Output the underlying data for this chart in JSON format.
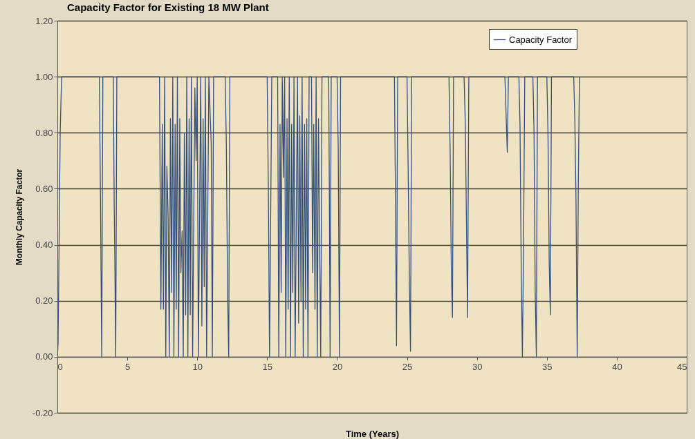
{
  "chart_data": {
    "type": "line",
    "title": "Capacity Factor for Existing 18 MW Plant",
    "xlabel": "Time (Years)",
    "ylabel": "Monthly Capacity Factor",
    "xlim": [
      0,
      45
    ],
    "xticks": [
      0,
      5,
      10,
      15,
      20,
      25,
      30,
      35,
      40,
      45
    ],
    "ylim": [
      -0.2,
      1.2
    ],
    "yticks": [
      {
        "value": -0.2,
        "label": "-0.20"
      },
      {
        "value": 0,
        "label": "0.00"
      },
      {
        "value": 0.2,
        "label": "0.20"
      },
      {
        "value": 0.4,
        "label": "0.40"
      },
      {
        "value": 0.6,
        "label": "0.60"
      },
      {
        "value": 0.8,
        "label": "0.80"
      },
      {
        "value": 1,
        "label": "1.00"
      },
      {
        "value": 1.2,
        "label": "1.20"
      }
    ],
    "grid": "y",
    "legend": "top right",
    "marker": "none",
    "line_style": "solid",
    "series": [
      {
        "name": "Capacity Factor",
        "color": "#34507e",
        "x": [
          0,
          0.05,
          0.1,
          0.2,
          0.3,
          3.0,
          3.08,
          3.17,
          3.25,
          4.0,
          4.06,
          4.1,
          4.17,
          4.25,
          7.3,
          7.4,
          7.5,
          7.58,
          7.67,
          7.75,
          7.83,
          7.92,
          8.0,
          8.08,
          8.17,
          8.25,
          8.33,
          8.42,
          8.5,
          8.58,
          8.67,
          8.75,
          8.83,
          8.92,
          9.0,
          9.08,
          9.17,
          9.25,
          9.33,
          9.42,
          9.5,
          9.58,
          9.67,
          9.83,
          9.92,
          10.0,
          10.08,
          10.25,
          10.33,
          10.42,
          10.5,
          10.58,
          10.67,
          10.83,
          11.0,
          11.08,
          11.17,
          12.0,
          12.08,
          12.17,
          12.25,
          12.33,
          15.0,
          15.08,
          15.17,
          15.33,
          15.75,
          15.83,
          15.92,
          16.0,
          16.08,
          16.17,
          16.25,
          16.33,
          16.42,
          16.5,
          16.58,
          16.67,
          16.75,
          16.83,
          16.92,
          17.0,
          17.17,
          17.25,
          17.33,
          17.42,
          17.5,
          17.58,
          17.67,
          17.75,
          17.83,
          17.92,
          18.0,
          18.17,
          18.25,
          18.33,
          18.42,
          18.5,
          18.58,
          18.67,
          18.75,
          18.83,
          18.92,
          19.4,
          19.45,
          19.5,
          19.58,
          20.0,
          20.08,
          20.17,
          20.25,
          24.1,
          24.17,
          24.25,
          24.33,
          25.0,
          25.08,
          25.17,
          25.25,
          25.33,
          28.0,
          28.08,
          28.17,
          28.25,
          28.33,
          29.08,
          29.17,
          29.25,
          29.33,
          29.42,
          32.0,
          32.08,
          32.17,
          32.25,
          33.0,
          33.08,
          33.17,
          33.25,
          33.33,
          33.42,
          34.0,
          34.08,
          34.17,
          34.25,
          34.33,
          35.0,
          35.08,
          35.17,
          35.25,
          35.33,
          36.92,
          37.0,
          37.08,
          37.17,
          37.25,
          37.33
        ],
        "values": [
          0,
          0.05,
          0.3,
          0.8,
          1,
          1,
          0.57,
          0,
          1,
          1,
          0.55,
          0.38,
          0,
          1,
          1,
          0.17,
          0.83,
          0.17,
          1,
          0,
          0.68,
          0.5,
          0,
          0.85,
          0.23,
          1,
          0,
          0.83,
          0.17,
          1,
          0,
          0.85,
          0.3,
          0.45,
          0,
          0.8,
          0.15,
          1,
          0,
          0.85,
          0.15,
          1,
          0,
          0.96,
          0.7,
          1,
          0,
          1,
          0.11,
          0.85,
          0.25,
          1,
          0,
          1,
          0.76,
          0,
          1,
          1,
          0.76,
          0.23,
          0,
          1,
          1,
          0.62,
          0,
          1,
          1,
          0,
          0.83,
          0.23,
          1,
          0.64,
          1,
          0,
          0.85,
          0.17,
          1,
          0,
          0.83,
          0.23,
          1,
          0,
          1,
          0.12,
          0.86,
          0.2,
          1,
          0,
          0.83,
          0.17,
          0.85,
          0,
          1,
          1,
          0.3,
          0.83,
          0.17,
          1,
          0,
          0.85,
          0.4,
          0,
          1,
          1,
          0.55,
          0,
          1,
          1,
          0.75,
          0,
          1,
          1,
          0.58,
          0.04,
          1,
          1,
          0.68,
          0.26,
          0.02,
          1,
          1,
          0.75,
          0.31,
          0.14,
          1,
          1,
          0.83,
          0.48,
          0.14,
          1,
          1,
          0.87,
          0.73,
          1,
          1,
          0.83,
          0.3,
          0,
          0.38,
          1,
          1,
          0.81,
          0.22,
          0,
          1,
          1,
          0.8,
          0.33,
          0.15,
          1,
          1,
          0.85,
          0.57,
          0,
          0.63,
          1
        ]
      }
    ]
  }
}
